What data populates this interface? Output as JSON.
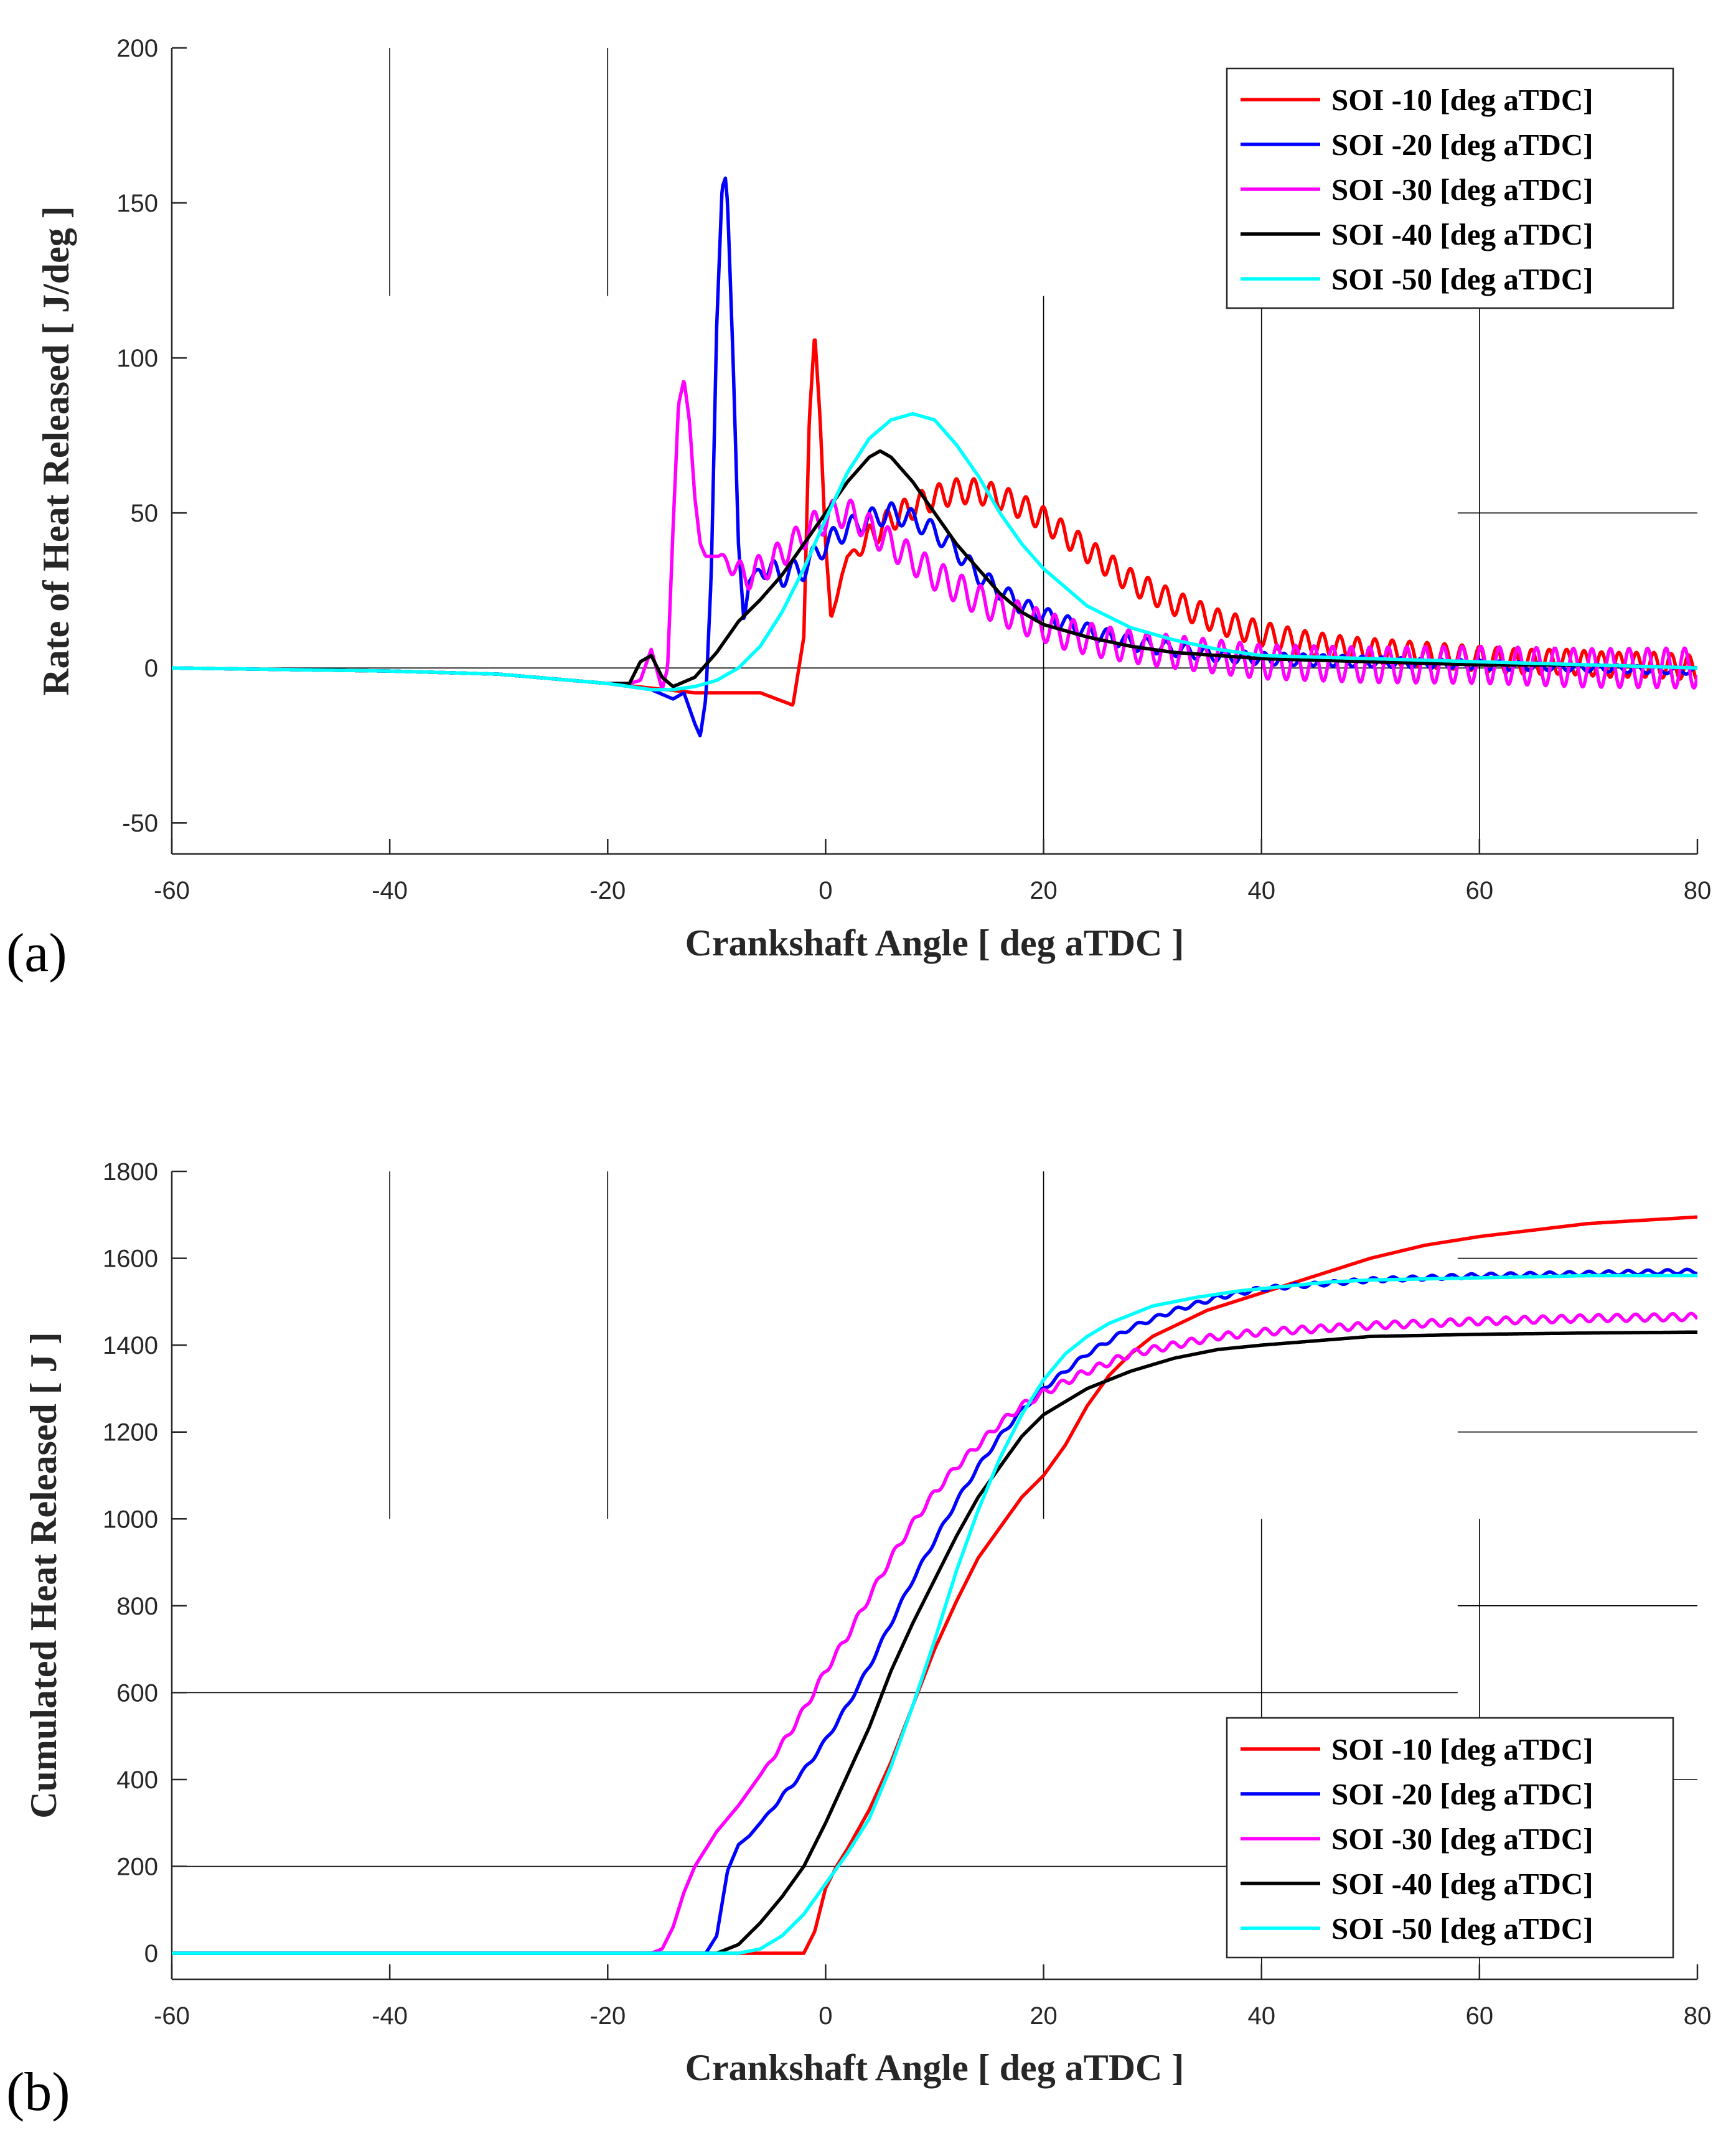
{
  "colors": {
    "red": "#ff0000",
    "blue": "#0000ff",
    "magenta": "#ff00ff",
    "black": "#000000",
    "cyan": "#00ffff"
  },
  "chart_data": [
    {
      "type": "line",
      "panel_label": "(a)",
      "xlabel": "Crankshaft Angle [ deg aTDC ]",
      "ylabel": "Rate of Heat Released [ J/deg ]",
      "xlim": [
        -60,
        80
      ],
      "ylim": [
        -60,
        200
      ],
      "xticks": [
        -60,
        -40,
        -20,
        0,
        20,
        40,
        60,
        80
      ],
      "yticks": [
        -50,
        0,
        50,
        100,
        150,
        200
      ],
      "legend_position": "top-right",
      "series": [
        {
          "name": "SOI -10 [deg aTDC]",
          "color": "red",
          "x": [
            -60,
            -40,
            -30,
            -20,
            -12,
            -6,
            -3,
            -2,
            -1.5,
            -1,
            -0.5,
            0,
            0.5,
            1,
            1.5,
            2,
            3,
            4,
            6,
            8,
            10,
            12,
            14,
            16,
            18,
            20,
            24,
            28,
            32,
            36,
            40,
            44,
            48,
            52,
            56,
            60,
            64,
            68,
            72,
            76,
            80
          ],
          "y": [
            0,
            -1,
            -2,
            -5,
            -8,
            -8,
            -12,
            10,
            80,
            108,
            80,
            40,
            16,
            22,
            30,
            36,
            38,
            42,
            48,
            52,
            55,
            57,
            57,
            55,
            52,
            48,
            38,
            28,
            21,
            15,
            11,
            8,
            6,
            5,
            4,
            3,
            2,
            2,
            1,
            1,
            0
          ],
          "osc": {
            "start": 2,
            "amp": 4,
            "period": 1.6,
            "decay": 0
          }
        },
        {
          "name": "SOI -20 [deg aTDC]",
          "color": "blue",
          "x": [
            -60,
            -40,
            -30,
            -20,
            -16,
            -14,
            -13,
            -12,
            -11.5,
            -11,
            -10.5,
            -10,
            -9.5,
            -9.2,
            -9,
            -8.5,
            -8,
            -7.5,
            -7,
            -6,
            -4,
            -2,
            0,
            2,
            4,
            6,
            8,
            10,
            12,
            14,
            16,
            18,
            20,
            24,
            28,
            32,
            36,
            40,
            50,
            60,
            70,
            80
          ],
          "y": [
            0,
            -1,
            -2,
            -5,
            -7,
            -10,
            -8,
            -18,
            -22,
            -10,
            30,
            110,
            155,
            158,
            150,
            100,
            40,
            15,
            28,
            32,
            30,
            32,
            40,
            45,
            48,
            50,
            48,
            44,
            38,
            30,
            25,
            20,
            17,
            12,
            8,
            6,
            4,
            3,
            2,
            1,
            0,
            -1
          ],
          "osc": {
            "start": -7,
            "amp": 4,
            "period": 1.8,
            "decay": 0.015
          }
        },
        {
          "name": "SOI -30 [deg aTDC]",
          "color": "magenta",
          "x": [
            -60,
            -40,
            -30,
            -20,
            -18,
            -17,
            -16,
            -15,
            -14.5,
            -14,
            -13.5,
            -13,
            -12.5,
            -12,
            -11.5,
            -11,
            -10,
            -9,
            -8,
            -7,
            -5,
            -3,
            -1,
            0,
            1,
            2,
            3,
            4,
            6,
            8,
            10,
            14,
            18,
            22,
            26,
            30,
            40,
            50,
            60,
            70,
            80
          ],
          "y": [
            0,
            -1,
            -2,
            -5,
            -5,
            -4,
            6,
            -7,
            0,
            45,
            85,
            93,
            80,
            55,
            40,
            36,
            36,
            35,
            30,
            30,
            34,
            40,
            46,
            48,
            50,
            50,
            48,
            45,
            40,
            35,
            30,
            22,
            16,
            11,
            8,
            6,
            2,
            1,
            1,
            0,
            0
          ],
          "osc": {
            "start": -10,
            "amp": 4.5,
            "period": 1.7,
            "decay": -0.004
          }
        },
        {
          "name": "SOI -40 [deg aTDC]",
          "color": "black",
          "x": [
            -60,
            -40,
            -30,
            -20,
            -18,
            -17,
            -16,
            -15,
            -14,
            -12,
            -10,
            -8,
            -6,
            -4,
            -2,
            0,
            2,
            4,
            5,
            6,
            8,
            10,
            12,
            14,
            16,
            18,
            20,
            24,
            28,
            32,
            36,
            40,
            50,
            60,
            70,
            80
          ],
          "y": [
            0,
            -1,
            -2,
            -5,
            -5,
            2,
            4,
            -3,
            -6,
            -3,
            5,
            15,
            22,
            30,
            40,
            50,
            60,
            68,
            70,
            68,
            60,
            50,
            40,
            32,
            24,
            18,
            14,
            10,
            7,
            5,
            4,
            3,
            2,
            1,
            1,
            0
          ],
          "osc": {
            "start": 999,
            "amp": 0,
            "period": 1,
            "decay": 0
          }
        },
        {
          "name": "SOI -50 [deg aTDC]",
          "color": "cyan",
          "x": [
            -60,
            -40,
            -30,
            -20,
            -18,
            -16,
            -14,
            -12,
            -10,
            -8,
            -6,
            -4,
            -2,
            0,
            2,
            4,
            6,
            8,
            10,
            12,
            14,
            16,
            18,
            20,
            24,
            28,
            32,
            36,
            40,
            50,
            60,
            70,
            80
          ],
          "y": [
            0,
            -1,
            -2,
            -5,
            -6,
            -7,
            -7,
            -6,
            -4,
            0,
            7,
            18,
            32,
            48,
            63,
            74,
            80,
            82,
            80,
            72,
            62,
            50,
            40,
            32,
            20,
            13,
            9,
            6,
            4,
            3,
            2,
            1,
            0
          ],
          "osc": {
            "start": 999,
            "amp": 0,
            "period": 1,
            "decay": 0
          }
        }
      ]
    },
    {
      "type": "line",
      "panel_label": "(b)",
      "xlabel": "Crankshaft Angle [ deg aTDC ]",
      "ylabel": "Cumulated Heat Released [ J ]",
      "xlim": [
        -60,
        80
      ],
      "ylim": [
        -60,
        1800
      ],
      "xticks": [
        -60,
        -40,
        -20,
        0,
        20,
        40,
        60,
        80
      ],
      "yticks": [
        0,
        200,
        400,
        600,
        800,
        1000,
        1200,
        1400,
        1600,
        1800
      ],
      "legend_position": "bottom-right",
      "series": [
        {
          "name": "SOI -10 [deg aTDC]",
          "color": "red",
          "x": [
            -60,
            -10,
            -2,
            -1,
            0,
            1,
            2,
            4,
            6,
            8,
            10,
            12,
            14,
            16,
            18,
            20,
            22,
            24,
            26,
            28,
            30,
            35,
            40,
            45,
            50,
            55,
            60,
            70,
            80
          ],
          "y": [
            0,
            0,
            0,
            50,
            150,
            200,
            240,
            330,
            440,
            570,
            700,
            810,
            910,
            980,
            1050,
            1100,
            1170,
            1260,
            1330,
            1380,
            1420,
            1480,
            1520,
            1560,
            1600,
            1630,
            1650,
            1680,
            1695
          ],
          "osc": {
            "start": 999,
            "amp": 0,
            "period": 1,
            "decay": 0
          }
        },
        {
          "name": "SOI -20 [deg aTDC]",
          "color": "blue",
          "x": [
            -60,
            -11,
            -10,
            -9,
            -8,
            -7,
            -6,
            -4,
            -2,
            0,
            2,
            4,
            6,
            8,
            10,
            12,
            14,
            16,
            18,
            20,
            24,
            28,
            32,
            36,
            40,
            50,
            60,
            70,
            80
          ],
          "y": [
            0,
            0,
            40,
            190,
            250,
            270,
            300,
            360,
            420,
            490,
            570,
            660,
            760,
            860,
            950,
            1040,
            1120,
            1190,
            1250,
            1300,
            1380,
            1440,
            1480,
            1510,
            1530,
            1550,
            1560,
            1565,
            1570
          ],
          "osc": {
            "start": -6,
            "amp": 5,
            "period": 1.8,
            "decay": 0
          }
        },
        {
          "name": "SOI -30 [deg aTDC]",
          "color": "magenta",
          "x": [
            -60,
            -16,
            -15,
            -14,
            -13,
            -12,
            -11,
            -10,
            -8,
            -6,
            -4,
            -2,
            0,
            2,
            4,
            6,
            8,
            10,
            12,
            14,
            16,
            18,
            20,
            24,
            28,
            32,
            36,
            40,
            50,
            60,
            70,
            80
          ],
          "y": [
            0,
            0,
            10,
            60,
            140,
            200,
            240,
            280,
            340,
            410,
            480,
            560,
            650,
            730,
            820,
            910,
            990,
            1060,
            1120,
            1170,
            1220,
            1260,
            1290,
            1340,
            1380,
            1400,
            1420,
            1430,
            1445,
            1455,
            1462,
            1465
          ],
          "osc": {
            "start": -6,
            "amp": 8,
            "period": 1.7,
            "decay": 0
          }
        },
        {
          "name": "SOI -40 [deg aTDC]",
          "color": "black",
          "x": [
            -60,
            -10,
            -8,
            -6,
            -4,
            -2,
            0,
            2,
            4,
            6,
            8,
            10,
            12,
            14,
            16,
            18,
            20,
            24,
            28,
            32,
            36,
            40,
            50,
            60,
            70,
            80
          ],
          "y": [
            0,
            0,
            20,
            70,
            130,
            200,
            300,
            410,
            520,
            650,
            760,
            860,
            960,
            1050,
            1120,
            1190,
            1240,
            1300,
            1340,
            1370,
            1390,
            1400,
            1420,
            1425,
            1428,
            1430
          ],
          "osc": {
            "start": 999,
            "amp": 0,
            "period": 1,
            "decay": 0
          }
        },
        {
          "name": "SOI -50 [deg aTDC]",
          "color": "cyan",
          "x": [
            -60,
            -8,
            -6,
            -4,
            -2,
            0,
            2,
            4,
            6,
            8,
            10,
            12,
            14,
            16,
            18,
            20,
            22,
            24,
            26,
            28,
            30,
            34,
            38,
            42,
            46,
            50,
            60,
            70,
            80
          ],
          "y": [
            0,
            0,
            10,
            40,
            90,
            160,
            230,
            310,
            430,
            570,
            720,
            880,
            1020,
            1140,
            1240,
            1320,
            1380,
            1420,
            1450,
            1470,
            1490,
            1510,
            1525,
            1535,
            1545,
            1550,
            1555,
            1560,
            1560
          ],
          "osc": {
            "start": 999,
            "amp": 0,
            "period": 1,
            "decay": 0
          }
        }
      ]
    }
  ]
}
